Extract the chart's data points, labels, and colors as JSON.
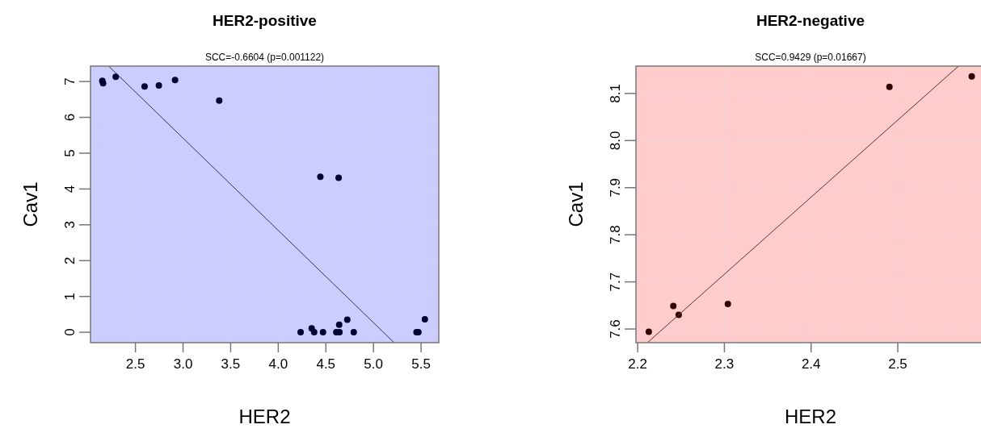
{
  "chart_data": [
    {
      "type": "scatter",
      "title": "HER2-positive",
      "subtitle": "SCC=-0.6604 (p=0.001122)",
      "xlabel": "HER2",
      "ylabel": "Cav1",
      "xlim": [
        2.028,
        5.686
      ],
      "ylim": [
        -0.29,
        7.43
      ],
      "xticks": [
        2.5,
        {
          "value": 3,
          "label": "3.0"
        },
        3.5,
        {
          "value": 4,
          "label": "4.0"
        },
        4.5,
        {
          "value": 5,
          "label": "5.0"
        },
        5.5
      ],
      "yticks": [
        0,
        1,
        2,
        3,
        4,
        5,
        6,
        7
      ],
      "grid": true,
      "series": [
        {
          "marker": "circle",
          "color": "#000033",
          "x": [
            2.152,
            2.16,
            2.293,
            2.596,
            2.746,
            2.916,
            3.38,
            4.442,
            4.634,
            4.235,
            4.351,
            4.377,
            4.47,
            4.609,
            4.643,
            4.64,
            4.725,
            4.793,
            5.452,
            5.472,
            5.54
          ],
          "values": [
            7.02,
            6.95,
            7.13,
            6.86,
            6.89,
            7.04,
            6.47,
            4.34,
            4.31,
            0,
            0.11,
            0,
            0,
            0,
            0,
            0.21,
            0.35,
            0,
            0,
            0,
            0.36
          ]
        },
        {
          "type": "line",
          "color": "#333355",
          "x": [
            2.223,
            5.217
          ],
          "values": [
            7.42,
            -0.29
          ]
        }
      ]
    },
    {
      "type": "scatter",
      "title": "HER2-negative",
      "subtitle": "SCC=0.9429 (p=0.01667)",
      "xlabel": "HER2",
      "ylabel": "Cav1",
      "xlim": [
        2.198,
        2.596
      ],
      "ylim": [
        7.571,
        8.158
      ],
      "xticks": [
        2.2,
        2.3,
        2.4,
        2.5
      ],
      "yticks": [
        7.6,
        7.7,
        7.8,
        7.9,
        {
          "value": 8,
          "label": "8.0"
        },
        8.1
      ],
      "grid": true,
      "series": [
        {
          "marker": "circle",
          "color": "#330000",
          "x": [
            2.2128,
            2.2411,
            2.2473,
            2.304,
            2.4904,
            2.5853
          ],
          "values": [
            7.594,
            7.649,
            7.63,
            7.653,
            8.114,
            8.136
          ]
        },
        {
          "type": "line",
          "color": "#553333",
          "x": [
            2.2112,
            2.57
          ],
          "values": [
            7.571,
            8.158
          ]
        }
      ]
    }
  ]
}
